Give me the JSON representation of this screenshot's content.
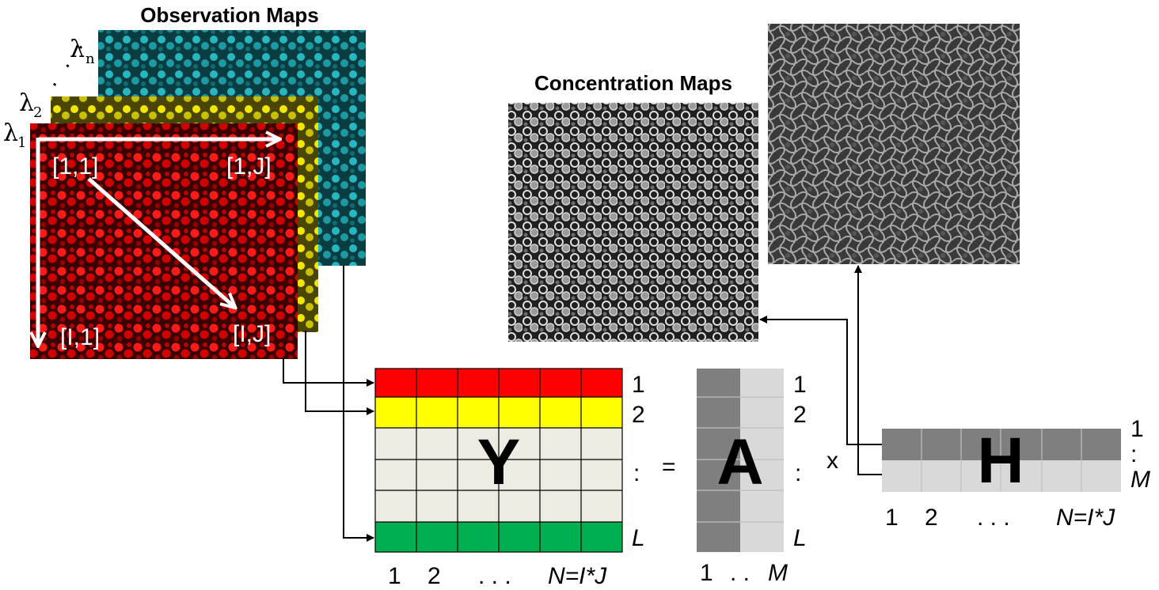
{
  "titles": {
    "observation": "Observation Maps",
    "concentration": "Concentration Maps"
  },
  "wavelengths": {
    "symbol": "λ",
    "first_sub": "1",
    "second_sub": "2",
    "last_sub": "n",
    "ellipsis": ". . ."
  },
  "coords": {
    "top_left": "[1,1]",
    "top_right": "[1,J]",
    "bottom_left": "[I,1]",
    "bottom_right": "[I,J]"
  },
  "matrices": {
    "Y": {
      "letter": "Y",
      "row_labels": [
        "1",
        "2",
        ":",
        "L"
      ],
      "col_labels": [
        "1",
        "2",
        ". . .",
        "N=I*J"
      ]
    },
    "A": {
      "letter": "A",
      "row_labels": [
        "1",
        "2",
        ":",
        "L"
      ],
      "col_labels": [
        "1",
        ". .",
        "M"
      ]
    },
    "H": {
      "letter": "H",
      "row_labels": [
        "1",
        ":",
        "M"
      ],
      "col_labels": [
        "1",
        "2",
        ". . .",
        "N=I*J"
      ]
    }
  },
  "operators": {
    "equals": "=",
    "times": "x"
  },
  "colors": {
    "obs_cyan": "#1aa7b0",
    "obs_yellow": "#e6dc00",
    "obs_red": "#e80000",
    "row_red": "#ff0000",
    "row_yellow": "#ffff00",
    "row_beige": "#eeebe2",
    "row_green": "#00b050",
    "dark_gray": "#7f7f7f",
    "light_gray": "#d9d9d9"
  }
}
